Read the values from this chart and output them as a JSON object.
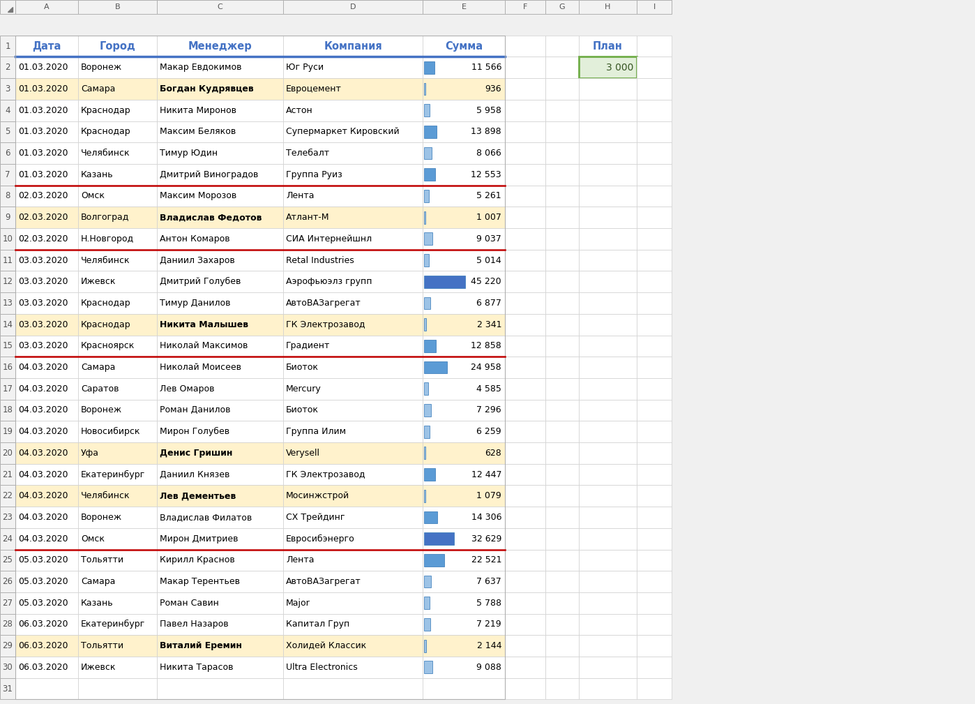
{
  "col_letters": [
    "A",
    "B",
    "C",
    "D",
    "E",
    "F",
    "G",
    "H",
    "I"
  ],
  "headers": [
    "Дата",
    "Город",
    "Менеджер",
    "Компания",
    "Сумма",
    "",
    "",
    "План",
    ""
  ],
  "data": [
    [
      "01.03.2020",
      "Воронеж",
      "Макар Евдокимов",
      "Юг Руси",
      11566
    ],
    [
      "01.03.2020",
      "Самара",
      "Богдан Кудрявцев",
      "Евроцемент",
      936
    ],
    [
      "01.03.2020",
      "Краснодар",
      "Никита Миронов",
      "Астон",
      5958
    ],
    [
      "01.03.2020",
      "Краснодар",
      "Максим Беляков",
      "Супермаркет Кировский",
      13898
    ],
    [
      "01.03.2020",
      "Челябинск",
      "Тимур Юдин",
      "Телебалт",
      8066
    ],
    [
      "01.03.2020",
      "Казань",
      "Дмитрий Виноградов",
      "Группа Руиз",
      12553
    ],
    [
      "02.03.2020",
      "Омск",
      "Максим Морозов",
      "Лента",
      5261
    ],
    [
      "02.03.2020",
      "Волгоград",
      "Владислав Федотов",
      "Атлант-М",
      1007
    ],
    [
      "02.03.2020",
      "Н.Новгород",
      "Антон Комаров",
      "СИА Интернейшнл",
      9037
    ],
    [
      "03.03.2020",
      "Челябинск",
      "Даниил Захаров",
      "Retal Industries",
      5014
    ],
    [
      "03.03.2020",
      "Ижевск",
      "Дмитрий Голубев",
      "Аэрофьюэлз групп",
      45220
    ],
    [
      "03.03.2020",
      "Краснодар",
      "Тимур Данилов",
      "АвтоВАЗагрегат",
      6877
    ],
    [
      "03.03.2020",
      "Краснодар",
      "Никита Малышев",
      "ГК Электрозавод",
      2341
    ],
    [
      "03.03.2020",
      "Красноярск",
      "Николай Максимов",
      "Градиент",
      12858
    ],
    [
      "04.03.2020",
      "Самара",
      "Николай Моисеев",
      "Биоток",
      24958
    ],
    [
      "04.03.2020",
      "Саратов",
      "Лев Омаров",
      "Mercury",
      4585
    ],
    [
      "04.03.2020",
      "Воронеж",
      "Роман Данилов",
      "Биоток",
      7296
    ],
    [
      "04.03.2020",
      "Новосибирск",
      "Мирон Голубев",
      "Группа Илим",
      6259
    ],
    [
      "04.03.2020",
      "Уфа",
      "Денис Гришин",
      "Verysell",
      628
    ],
    [
      "04.03.2020",
      "Екатеринбург",
      "Даниил Князев",
      "ГК Электрозавод",
      12447
    ],
    [
      "04.03.2020",
      "Челябинск",
      "Лев Дементьев",
      "Мосинжстрой",
      1079
    ],
    [
      "04.03.2020",
      "Воронеж",
      "Владислав Филатов",
      "СХ Трейдинг",
      14306
    ],
    [
      "04.03.2020",
      "Омск",
      "Мирон Дмитриев",
      "Евросибэнерго",
      32629
    ],
    [
      "05.03.2020",
      "Тольятти",
      "Кирилл Краснов",
      "Лента",
      22521
    ],
    [
      "05.03.2020",
      "Самара",
      "Макар Терентьев",
      "АвтоВАЗагрегат",
      7637
    ],
    [
      "05.03.2020",
      "Казань",
      "Роман Савин",
      "Major",
      5788
    ],
    [
      "06.03.2020",
      "Екатеринбург",
      "Павел Назаров",
      "Капитал Груп",
      7219
    ],
    [
      "06.03.2020",
      "Тольятти",
      "Виталий Еремин",
      "Холидей Классик",
      2144
    ],
    [
      "06.03.2020",
      "Ижевск",
      "Никита Тарасов",
      "Ultra Electronics",
      9088
    ]
  ],
  "yellow_rows": [
    3,
    9,
    14,
    20,
    22,
    29
  ],
  "red_border_after_rows": [
    7,
    10,
    15,
    24
  ],
  "plan_value": "3 000",
  "plan_row": 2,
  "max_sum": 45220,
  "bar_color_dark": "#4472C4",
  "bar_color_light": "#9DC3E6",
  "bar_color_medium": "#5B9BD5",
  "header_text_color": "#4472C4",
  "yellow_bg": "#FFF2CC",
  "plan_bg": "#E2EFDA",
  "plan_border_color": "#70AD47",
  "grid_color": "#D0D0D0",
  "red_border_color": "#C00000",
  "header_bg": "#FFFFFF",
  "row_bg_white": "#FFFFFF",
  "row_num_bg": "#F2F2F2",
  "col_header_bg": "#F2F2F2",
  "sheet_bg": "#F0F0F0",
  "header_bottom_border": "#4472C4",
  "col_header_text": "#555555",
  "row_num_text": "#555555"
}
